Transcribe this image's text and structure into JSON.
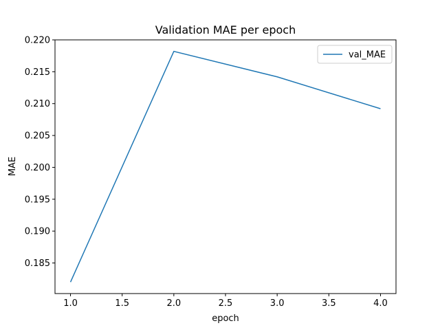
{
  "chart_data": {
    "type": "line",
    "title": "Validation MAE per epoch",
    "xlabel": "epoch",
    "ylabel": "MAE",
    "xlim": [
      0.85,
      4.15
    ],
    "ylim": [
      0.1802,
      0.22
    ],
    "xticks": [
      1.0,
      1.5,
      2.0,
      2.5,
      3.0,
      3.5,
      4.0
    ],
    "xtick_labels": [
      "1.0",
      "1.5",
      "2.0",
      "2.5",
      "3.0",
      "3.5",
      "4.0"
    ],
    "yticks": [
      0.185,
      0.19,
      0.195,
      0.2,
      0.205,
      0.21,
      0.215,
      0.22
    ],
    "ytick_labels": [
      "0.185",
      "0.190",
      "0.195",
      "0.200",
      "0.205",
      "0.210",
      "0.215",
      "0.220"
    ],
    "grid": false,
    "legend_position": "top-right",
    "x": [
      1,
      2,
      3,
      4
    ],
    "series": [
      {
        "name": "val_MAE",
        "color": "#1f77b4",
        "values": [
          0.182,
          0.2182,
          0.2142,
          0.2092
        ]
      }
    ]
  }
}
